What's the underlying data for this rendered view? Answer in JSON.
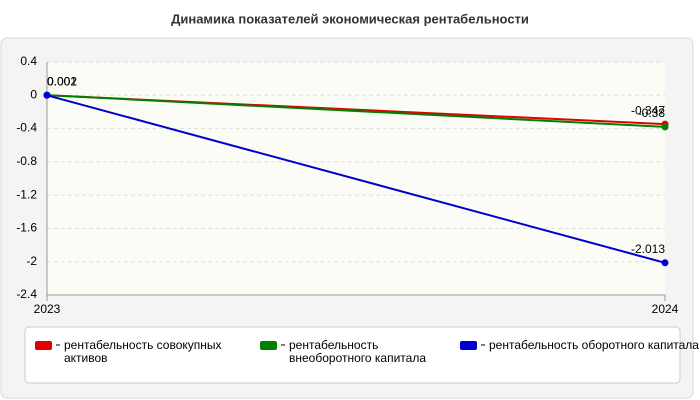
{
  "chart_data": {
    "type": "line",
    "title": "Динамика показателей экономическая рентабельности",
    "categories": [
      "2023",
      "2024"
    ],
    "series": [
      {
        "name": "рентабельность совокупных активов",
        "color": "#e00000",
        "values": [
          0.001,
          -0.347
        ]
      },
      {
        "name": "рентабельность внеоборотного капитала",
        "color": "#008000",
        "values": [
          0.002,
          -0.38
        ]
      },
      {
        "name": "рентабельность оборотного капитала",
        "color": "#0000cc",
        "values": [
          0,
          -2.013
        ]
      }
    ],
    "ylim": [
      -2.4,
      0.4
    ],
    "yticks": [
      0.4,
      0,
      -0.4,
      -0.8,
      -1.2,
      -1.6,
      -2,
      -2.4
    ],
    "grid": true,
    "legend": "bottom"
  }
}
